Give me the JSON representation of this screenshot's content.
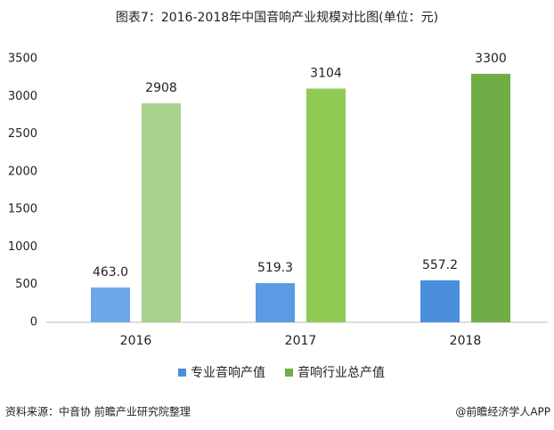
{
  "chart_data": {
    "type": "bar",
    "title": "图表7：2016-2018年中国音响产业规模对比图(单位：元)",
    "categories": [
      "2016",
      "2017",
      "2018"
    ],
    "series": [
      {
        "name": "专业音响产值",
        "color": "#4a8fdc",
        "colors": [
          "#6ea6ea",
          "#5b9be3",
          "#4a8fdc"
        ],
        "values": [
          463.0,
          519.3,
          557.2
        ],
        "value_labels": [
          "463.0",
          "519.3",
          "557.2"
        ]
      },
      {
        "name": "音响行业总产值",
        "color": "#70ad47",
        "colors": [
          "#a9d18e",
          "#8fca55",
          "#70ad47"
        ],
        "values": [
          2908,
          3104,
          3300
        ]
      }
    ],
    "ylim": [
      0,
      3500
    ],
    "yticks": [
      0,
      500,
      1000,
      1500,
      2000,
      2500,
      3000,
      3500
    ],
    "grid": false,
    "source": "资料来源：中音协 前瞻产业研究院整理",
    "credit": "@前瞻经济学人APP"
  }
}
